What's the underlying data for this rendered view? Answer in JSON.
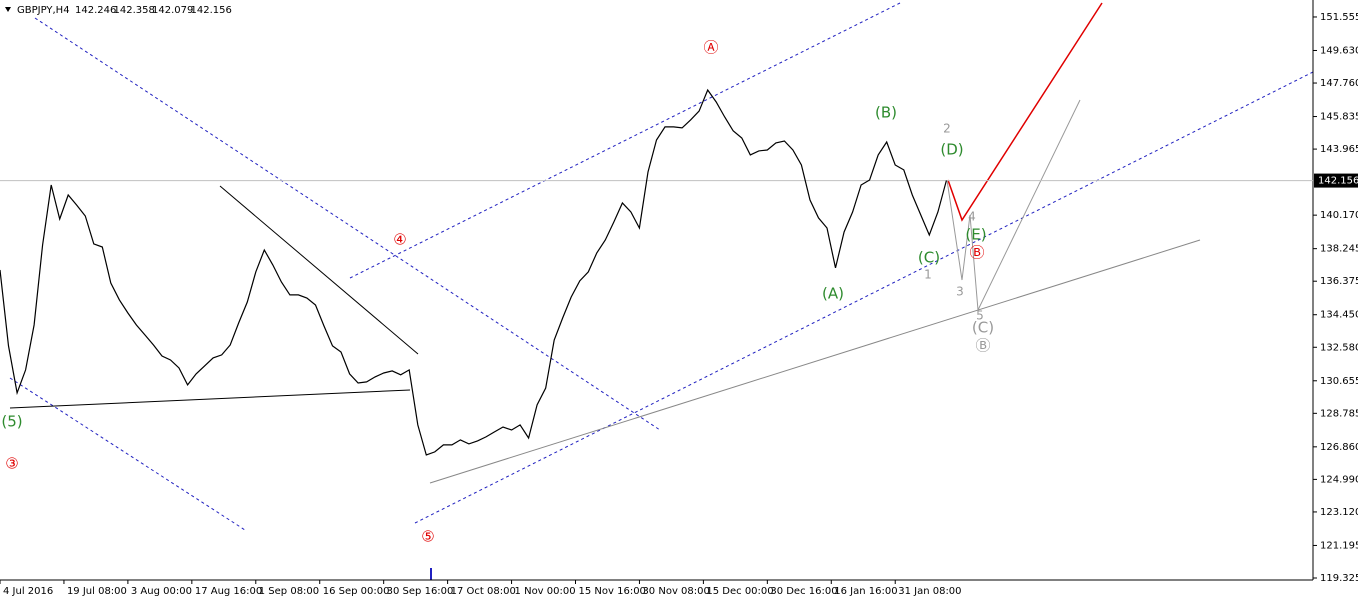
{
  "chart_data": {
    "type": "line",
    "title": "GBPJPY,H4",
    "ohlc": [
      142.246,
      142.358,
      142.079,
      142.156
    ],
    "x": [
      0,
      1,
      2,
      3,
      4,
      5,
      6,
      7,
      8,
      9,
      10,
      11,
      12,
      13,
      14,
      15,
      16,
      17,
      18,
      19,
      20,
      21,
      22,
      23,
      24,
      25,
      26,
      27,
      28,
      29,
      30,
      31,
      32,
      33,
      34,
      35,
      36,
      37,
      38,
      39,
      40,
      41,
      42,
      43,
      44,
      45,
      46,
      47,
      48,
      49,
      50,
      51,
      52,
      53,
      54,
      55,
      56,
      57,
      58,
      59,
      60,
      61,
      62,
      63,
      64,
      65,
      66,
      67,
      68,
      69,
      70,
      71,
      72,
      73,
      74,
      75,
      76,
      77,
      78,
      79,
      80,
      81,
      82,
      83,
      84,
      85,
      86,
      87,
      88,
      89,
      90,
      91,
      92,
      93,
      94,
      95,
      96,
      97,
      98,
      99,
      100,
      101,
      102,
      103,
      104,
      105,
      106,
      107,
      108,
      109,
      110,
      111
    ],
    "series": [
      {
        "color": "#000000",
        "values": [
          137.02,
          132.66,
          129.96,
          131.28,
          133.86,
          138.46,
          141.9,
          139.95,
          141.33,
          140.75,
          140.12,
          138.52,
          138.34,
          136.27,
          135.3,
          134.55,
          133.86,
          133.29,
          132.71,
          132.08,
          131.85,
          131.39,
          130.42,
          131.05,
          131.51,
          131.97,
          132.14,
          132.71,
          133.98,
          135.18,
          136.91,
          138.17,
          137.31,
          136.33,
          135.59,
          135.59,
          135.41,
          135.01,
          133.8,
          132.66,
          132.31,
          131.05,
          130.53,
          130.59,
          130.88,
          131.1,
          131.22,
          131.0,
          131.28,
          128.12,
          126.39,
          126.57,
          126.97,
          126.97,
          127.26,
          127.03,
          127.2,
          127.43,
          127.72,
          128.0,
          127.83,
          128.12,
          127.37,
          129.27,
          130.24,
          133.0,
          134.27,
          135.47,
          136.39,
          136.91,
          138.0,
          138.74,
          139.78,
          140.87,
          140.35,
          139.43,
          142.65,
          144.49,
          145.24,
          145.24,
          145.18,
          145.64,
          146.15,
          147.36,
          146.67,
          145.81,
          145.01,
          144.6,
          143.63,
          143.86,
          143.91,
          144.32,
          144.43,
          143.91,
          143.05,
          141.04,
          140.01,
          139.43,
          137.14,
          139.2,
          140.35,
          141.9,
          142.19,
          143.63,
          144.37,
          143.05,
          142.77,
          141.33,
          140.18,
          139.03,
          140.35,
          142.16
        ]
      }
    ],
    "xlim": [
      0,
      154
    ],
    "xticks": [
      {
        "value": 0,
        "label": "4 Jul 2016"
      },
      {
        "value": 7.5,
        "label": "19 Jul 08:00"
      },
      {
        "value": 15,
        "label": "3 Aug 00:00"
      },
      {
        "value": 22.5,
        "label": "17 Aug 16:00"
      },
      {
        "value": 30,
        "label": "1 Sep 08:00"
      },
      {
        "value": 37.5,
        "label": "16 Sep 00:00"
      },
      {
        "value": 45,
        "label": "30 Sep 16:00"
      },
      {
        "value": 52.5,
        "label": "17 Oct 08:00"
      },
      {
        "value": 60,
        "label": "1 Nov 00:00"
      },
      {
        "value": 67.5,
        "label": "15 Nov 16:00"
      },
      {
        "value": 75,
        "label": "30 Nov 08:00"
      },
      {
        "value": 82.5,
        "label": "15 Dec 00:00"
      },
      {
        "value": 90,
        "label": "30 Dec 16:00"
      },
      {
        "value": 97.5,
        "label": "16 Jan 16:00"
      },
      {
        "value": 105,
        "label": "31 Jan 08:00"
      }
    ],
    "ylim": [
      119.21,
      152.53
    ],
    "yticks": [
      151.555,
      {
        "value": 149.63,
        "label": "149.630"
      },
      {
        "value": 147.76,
        "label": "147.760"
      },
      145.835,
      143.965,
      {
        "value": 140.17,
        "label": "140.170"
      },
      138.245,
      136.375,
      {
        "value": 134.45,
        "label": "134.450"
      },
      {
        "value": 132.58,
        "label": "132.580"
      },
      130.655,
      128.785,
      {
        "value": 126.86,
        "label": "126.860"
      },
      {
        "value": 124.99,
        "label": "124.990"
      },
      {
        "value": 123.12,
        "label": "123.120"
      },
      121.195,
      119.325
    ],
    "annotations": [
      {
        "text": "(5)",
        "color": "#2e8b2e"
      },
      {
        "text": "③",
        "color": "#e00000"
      },
      {
        "text": "④",
        "color": "#e00000"
      },
      {
        "text": "⑤",
        "color": "#e00000"
      },
      {
        "text": "Ⓐ",
        "color": "#e00000"
      },
      {
        "text": "(A)",
        "color": "#2e8b2e"
      },
      {
        "text": "(B)",
        "color": "#2e8b2e"
      },
      {
        "text": "(C)",
        "color": "#2e8b2e"
      },
      {
        "text": "(D)",
        "color": "#2e8b2e"
      },
      {
        "text": "(E)",
        "color": "#2e8b2e"
      },
      {
        "text": "Ⓑ",
        "color": "#e00000"
      },
      {
        "text": "1",
        "color": "#999999"
      },
      {
        "text": "2",
        "color": "#999999"
      },
      {
        "text": "3",
        "color": "#999999"
      },
      {
        "text": "4",
        "color": "#999999"
      },
      {
        "text": "5",
        "color": "#999999"
      },
      {
        "text": "(C)",
        "color": "#999999"
      },
      {
        "text": "Ⓑ",
        "color": "#999999"
      }
    ]
  }
}
